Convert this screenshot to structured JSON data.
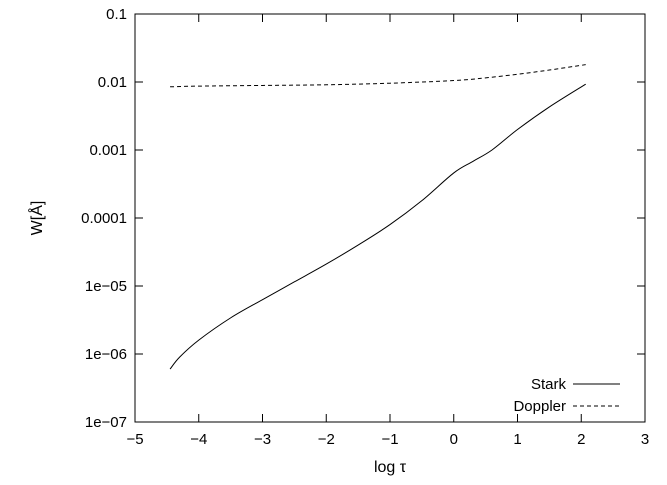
{
  "chart_data": {
    "type": "line",
    "title": "",
    "xlabel": "log τ",
    "ylabel": "W[Å]",
    "xlim": [
      -5,
      3
    ],
    "ylim": [
      1e-07,
      0.1
    ],
    "yscale": "log",
    "grid": false,
    "legend_position": "bottom-right",
    "x_ticks": [
      {
        "value": -5,
        "label": "−5"
      },
      {
        "value": -4,
        "label": "−4"
      },
      {
        "value": -3,
        "label": "−3"
      },
      {
        "value": -2,
        "label": "−2"
      },
      {
        "value": -1,
        "label": "−1"
      },
      {
        "value": 0,
        "label": "0"
      },
      {
        "value": 1,
        "label": "1"
      },
      {
        "value": 2,
        "label": "2"
      },
      {
        "value": 3,
        "label": "3"
      }
    ],
    "y_ticks": [
      {
        "value": 1e-07,
        "label": "1e−07"
      },
      {
        "value": 1e-06,
        "label": "1e−06"
      },
      {
        "value": 1e-05,
        "label": "1e−05"
      },
      {
        "value": 0.0001,
        "label": "0.0001"
      },
      {
        "value": 0.001,
        "label": "0.001"
      },
      {
        "value": 0.01,
        "label": "0.01"
      },
      {
        "value": 0.1,
        "label": "0.1"
      }
    ],
    "series": [
      {
        "name": "Stark",
        "style": "solid",
        "color": "#000000",
        "points": [
          [
            -4.45,
            6e-07
          ],
          [
            -4.3,
            9e-07
          ],
          [
            -4.0,
            1.6e-06
          ],
          [
            -3.5,
            3.4e-06
          ],
          [
            -3.0,
            6.3e-06
          ],
          [
            -2.5,
            1.15e-05
          ],
          [
            -2.0,
            2.1e-05
          ],
          [
            -1.5,
            4e-05
          ],
          [
            -1.0,
            8e-05
          ],
          [
            -0.5,
            0.00018
          ],
          [
            0.0,
            0.00046
          ],
          [
            0.3,
            0.00068
          ],
          [
            0.6,
            0.001
          ],
          [
            1.0,
            0.002
          ],
          [
            1.5,
            0.0043
          ],
          [
            2.07,
            0.0093
          ]
        ]
      },
      {
        "name": "Doppler",
        "style": "dashed",
        "color": "#000000",
        "points": [
          [
            -4.45,
            0.0085
          ],
          [
            -4.0,
            0.0087
          ],
          [
            -3.0,
            0.0089
          ],
          [
            -2.0,
            0.0091
          ],
          [
            -1.0,
            0.0096
          ],
          [
            0.0,
            0.0105
          ],
          [
            0.5,
            0.0115
          ],
          [
            1.0,
            0.013
          ],
          [
            1.5,
            0.015
          ],
          [
            2.07,
            0.018
          ]
        ]
      }
    ]
  }
}
